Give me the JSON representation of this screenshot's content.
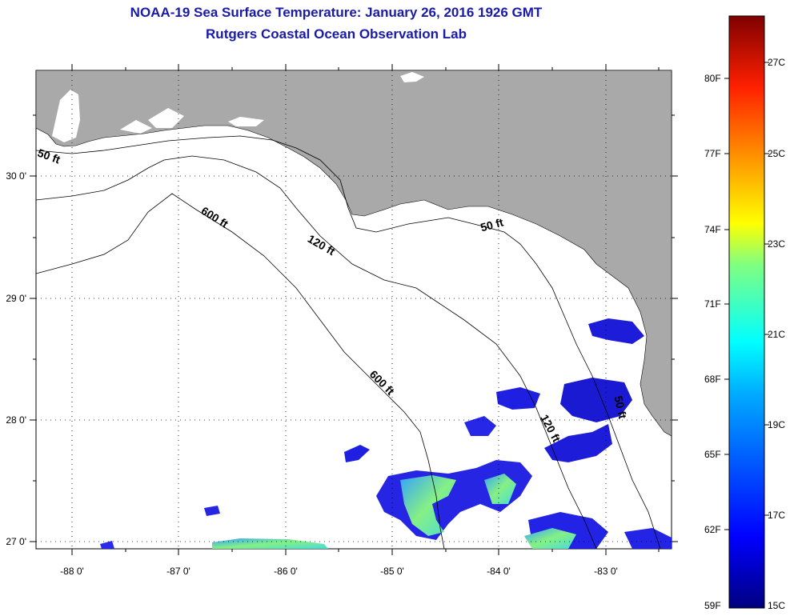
{
  "title": "NOAA-19 Sea Surface Temperature:  January 26, 2016 1926 GMT",
  "subtitle": "Rutgers Coastal Ocean Observation Lab",
  "x_tick_labels": [
    "-88 0'",
    "-87 0'",
    "-86 0'",
    "-85 0'",
    "-84 0'",
    "-83 0'"
  ],
  "y_tick_labels": [
    "30 0'",
    "29 0'",
    "28 0'",
    "27 0'"
  ],
  "contour_labels": [
    "50 ft",
    "600 ft",
    "120 ft",
    "50 ft",
    "600 ft",
    "120 ft",
    "50 ft"
  ],
  "colorbar": {
    "fahrenheit_labels": [
      "80F",
      "77F",
      "74F",
      "71F",
      "68F",
      "65F",
      "62F",
      "59F"
    ],
    "celsius_labels": [
      "27C",
      "25C",
      "23C",
      "21C",
      "19C",
      "17C",
      "15C"
    ]
  },
  "colors": {
    "title": "#1a1aa8",
    "land": "#a9a9a9",
    "ocean": "#ffffff"
  }
}
